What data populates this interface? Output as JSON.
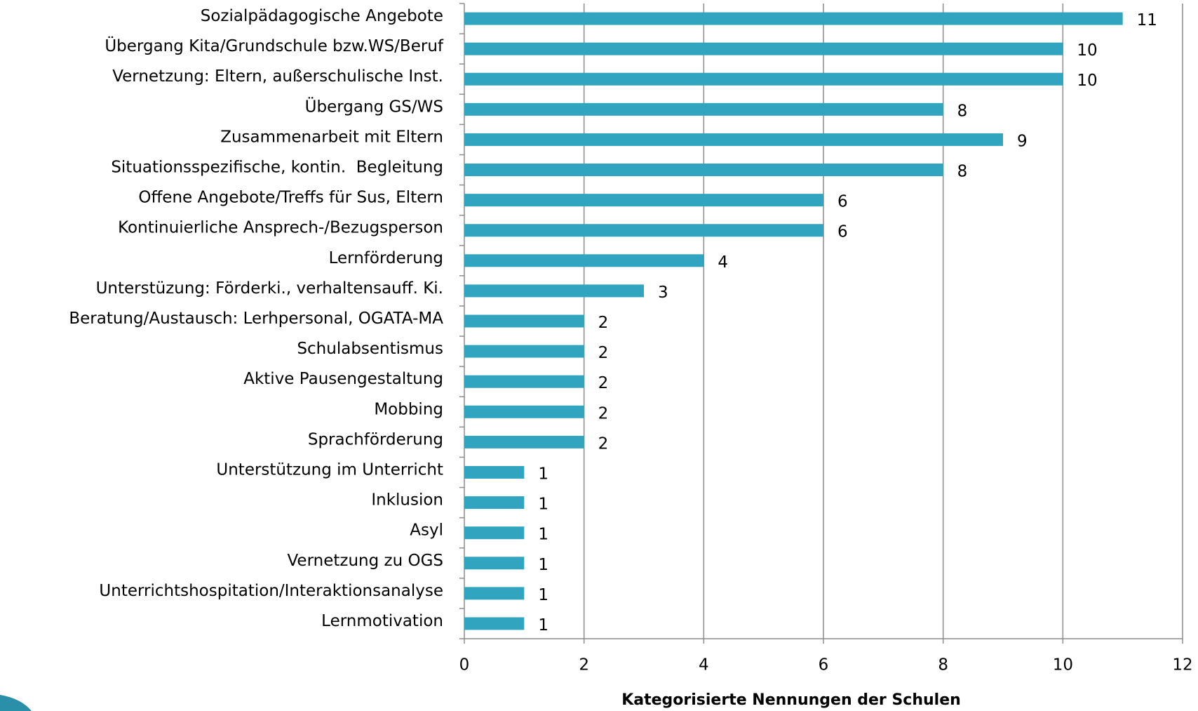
{
  "chart_data": {
    "type": "bar",
    "orientation": "horizontal",
    "categories": [
      "Sozialpädagogische Angebote",
      "Übergang Kita/Grundschule bzw.WS/Beruf",
      "Vernetzung: Eltern, außerschulische Inst.",
      "Übergang GS/WS",
      "Zusammenarbeit mit Eltern",
      "Situationsspezifische, kontin.  Begleitung",
      "Offene Angebote/Treffs für Sus, Eltern",
      "Kontinuierliche Ansprech-/Bezugsperson",
      "Lernförderung",
      "Unterstüzung: Förderki., verhaltensauff. Ki.",
      "Beratung/Austausch: Lerhpersonal, OGATA-MA",
      "Schulabsentismus",
      "Aktive Pausengestaltung",
      "Mobbing",
      "Sprachförderung",
      "Unterstützung im Unterricht",
      "Inklusion",
      "Asyl",
      "Vernetzung zu OGS",
      "Unterrichtshospitation/Interaktionsanalyse",
      "Lernmotivation"
    ],
    "values": [
      11,
      10,
      10,
      8,
      9,
      8,
      6,
      6,
      4,
      3,
      2,
      2,
      2,
      2,
      2,
      1,
      1,
      1,
      1,
      1,
      1
    ],
    "color": "#31a5c0",
    "xlabel": "Kategorisierte Nennungen der Schulen",
    "xlim": [
      0,
      12
    ],
    "xticks": [
      0,
      2,
      4,
      6,
      8,
      10,
      12
    ],
    "grid": true
  }
}
